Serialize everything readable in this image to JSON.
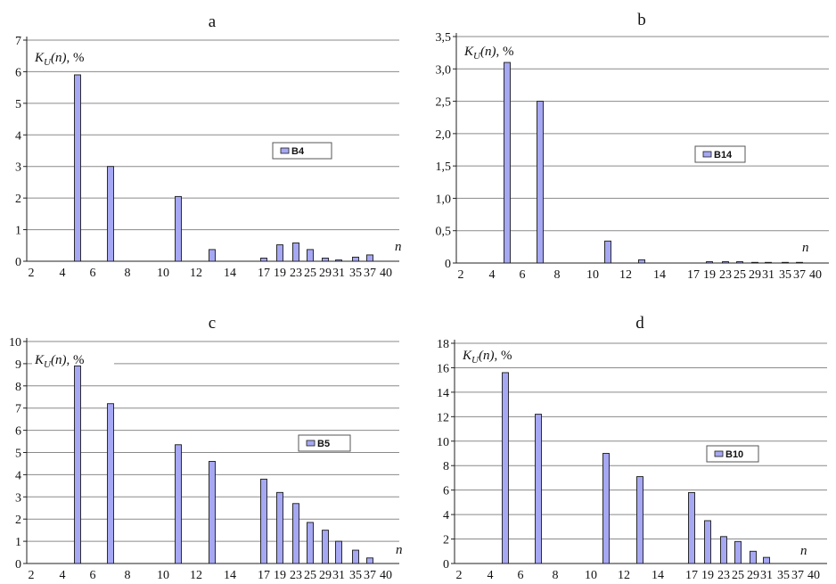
{
  "chart_data": [
    {
      "type": "bar",
      "title": "a",
      "ylabel": "K_U(n), %",
      "xlabel": "n",
      "ylim": [
        0,
        7
      ],
      "yticks": [
        "0",
        "1",
        "2",
        "3",
        "4",
        "5",
        "6",
        "7"
      ],
      "categories": [
        "2",
        "3",
        "4",
        "5",
        "6",
        "7",
        "8",
        "10",
        "11",
        "12",
        "13",
        "14",
        "17",
        "19",
        "23",
        "25",
        "29",
        "31",
        "35",
        "37",
        "40"
      ],
      "xtick_labels": [
        "2",
        "4",
        "6",
        "8",
        "10",
        "12",
        "14",
        "17",
        "19",
        "23",
        "25",
        "29",
        "31",
        "35",
        "37",
        "40"
      ],
      "series": [
        {
          "name": "B4",
          "values": [
            0,
            0,
            0,
            5.9,
            0,
            3.0,
            0,
            0,
            2.05,
            0,
            0.37,
            0,
            0.1,
            0.52,
            0.58,
            0.37,
            0.1,
            0.04,
            0.13,
            0.2,
            0
          ]
        }
      ],
      "grid": true,
      "legend_position": "center-right",
      "bar_color": "#a6a8f3"
    },
    {
      "type": "bar",
      "title": "b",
      "ylabel": "K_U(n), %",
      "xlabel": "n",
      "ylim": [
        0,
        3.5
      ],
      "yticks": [
        "0",
        "0,5",
        "1,0",
        "1,5",
        "2,0",
        "2,5",
        "3,0",
        "3,5"
      ],
      "categories": [
        "2",
        "3",
        "4",
        "5",
        "6",
        "7",
        "8",
        "10",
        "11",
        "12",
        "13",
        "14",
        "17",
        "19",
        "23",
        "25",
        "29",
        "31",
        "35",
        "37",
        "40"
      ],
      "xtick_labels": [
        "2",
        "4",
        "6",
        "8",
        "10",
        "12",
        "14",
        "17",
        "19",
        "23",
        "25",
        "29",
        "31",
        "35",
        "37",
        "40"
      ],
      "series": [
        {
          "name": "B14",
          "values": [
            0,
            0,
            0,
            3.1,
            0,
            2.5,
            0,
            0,
            0.34,
            0,
            0.05,
            0,
            0,
            0.02,
            0.02,
            0.02,
            0.01,
            0.01,
            0.01,
            0.01,
            0
          ]
        }
      ],
      "grid": true,
      "legend_position": "center-right",
      "bar_color": "#a6a8f3"
    },
    {
      "type": "bar",
      "title": "c",
      "ylabel": "K_U(n), %",
      "xlabel": "n",
      "ylim": [
        0,
        10
      ],
      "yticks": [
        "0",
        "1",
        "2",
        "3",
        "4",
        "5",
        "6",
        "7",
        "8",
        "9",
        "10"
      ],
      "categories": [
        "2",
        "3",
        "4",
        "5",
        "6",
        "7",
        "8",
        "10",
        "11",
        "12",
        "13",
        "14",
        "17",
        "19",
        "23",
        "25",
        "29",
        "31",
        "35",
        "37",
        "40"
      ],
      "xtick_labels": [
        "2",
        "4",
        "6",
        "8",
        "10",
        "12",
        "14",
        "17",
        "19",
        "23",
        "25",
        "29",
        "31",
        "35",
        "37",
        "40"
      ],
      "series": [
        {
          "name": "B5",
          "values": [
            0,
            0,
            0,
            8.9,
            0,
            7.2,
            0,
            0,
            5.35,
            0,
            4.6,
            0,
            3.8,
            3.2,
            2.7,
            1.85,
            1.5,
            1.0,
            0.6,
            0.25,
            0
          ]
        }
      ],
      "grid": true,
      "legend_position": "center-right",
      "bar_color": "#a6a8f3"
    },
    {
      "type": "bar",
      "title": "d",
      "ylabel": "K_U(n), %",
      "xlabel": "n",
      "ylim": [
        0,
        18
      ],
      "yticks": [
        "0",
        "2",
        "4",
        "6",
        "8",
        "10",
        "12",
        "14",
        "16",
        "18"
      ],
      "categories": [
        "2",
        "3",
        "4",
        "5",
        "6",
        "7",
        "8",
        "10",
        "11",
        "12",
        "13",
        "14",
        "17",
        "19",
        "23",
        "25",
        "29",
        "31",
        "35",
        "37",
        "40"
      ],
      "xtick_labels": [
        "2",
        "4",
        "6",
        "8",
        "10",
        "12",
        "14",
        "17",
        "19",
        "23",
        "25",
        "29",
        "31",
        "35",
        "37",
        "40"
      ],
      "series": [
        {
          "name": "B10",
          "values": [
            0,
            0,
            0,
            15.6,
            0,
            12.2,
            0,
            0,
            9.0,
            0,
            7.1,
            0,
            5.8,
            3.5,
            2.2,
            1.8,
            1.0,
            0.5,
            0,
            0,
            0
          ]
        }
      ],
      "grid": true,
      "legend_position": "center-right",
      "bar_color": "#a6a8f3"
    }
  ]
}
